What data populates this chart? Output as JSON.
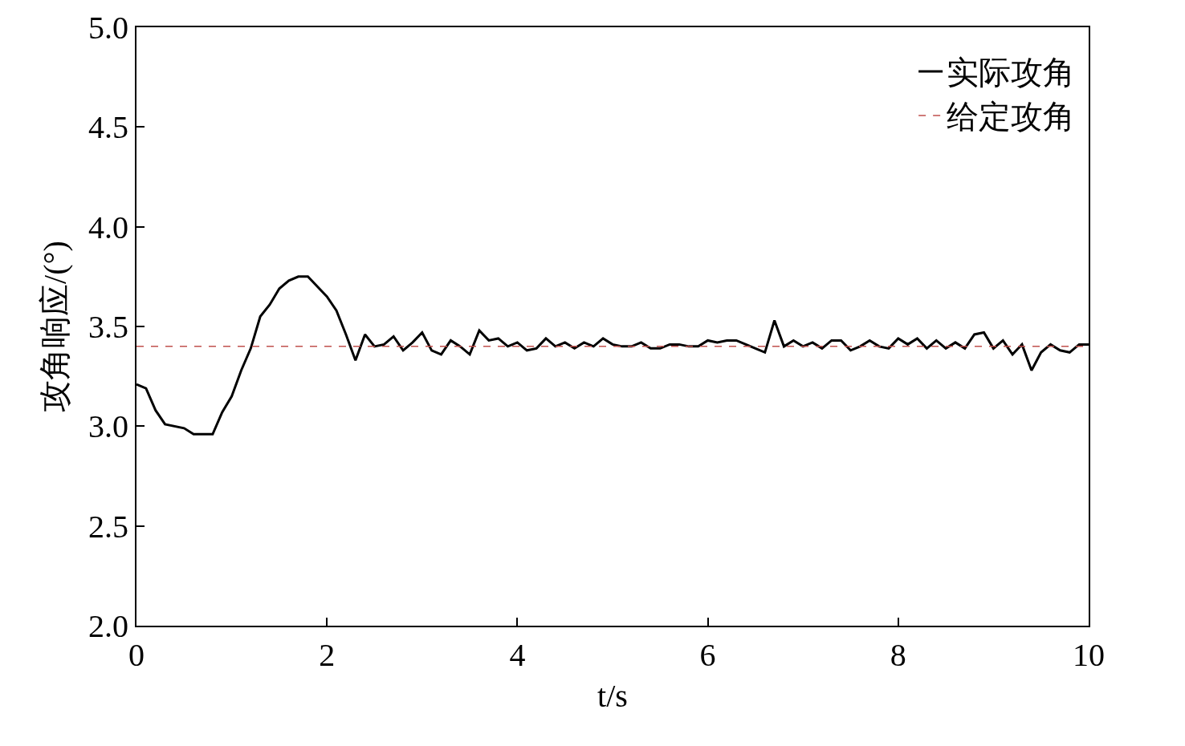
{
  "chart_data": {
    "type": "line",
    "xlabel": "t/s",
    "ylabel": "攻角响应/(°)",
    "xlim": [
      0,
      10
    ],
    "xticks": [
      0,
      2,
      4,
      6,
      8,
      10
    ],
    "ylim": [
      2.0,
      5.0
    ],
    "yticks": [
      {
        "value": 2.0,
        "label": "2.0"
      },
      {
        "value": 2.5,
        "label": "2.5"
      },
      {
        "value": 3.0,
        "label": "3.0"
      },
      {
        "value": 3.5,
        "label": "3.5"
      },
      {
        "value": 4.0,
        "label": "4.0"
      },
      {
        "value": 4.5,
        "label": "4.5"
      },
      {
        "value": 5.0,
        "label": "5.0"
      }
    ],
    "legend": "top right",
    "marker": "none",
    "x": [
      0,
      0.1,
      0.2,
      0.3,
      0.5,
      0.6,
      0.8,
      0.9,
      1.0,
      1.1,
      1.2,
      1.3,
      1.4,
      1.5,
      1.6,
      1.7,
      1.8,
      1.9,
      2.0,
      2.1,
      2.2,
      2.3,
      2.4,
      2.5,
      2.6,
      2.7,
      2.8,
      2.9,
      3.0,
      3.1,
      3.2,
      3.3,
      3.4,
      3.5,
      3.6,
      3.7,
      3.8,
      3.9,
      4.0,
      4.1,
      4.2,
      4.3,
      4.4,
      4.5,
      4.6,
      4.7,
      4.8,
      4.9,
      5.0,
      5.1,
      5.2,
      5.3,
      5.4,
      5.5,
      5.6,
      5.7,
      5.8,
      5.9,
      6.0,
      6.1,
      6.2,
      6.3,
      6.4,
      6.5,
      6.6,
      6.7,
      6.8,
      6.9,
      7.0,
      7.1,
      7.2,
      7.3,
      7.4,
      7.5,
      7.6,
      7.7,
      7.8,
      7.9,
      8.0,
      8.1,
      8.2,
      8.3,
      8.4,
      8.5,
      8.6,
      8.7,
      8.8,
      8.9,
      9.0,
      9.1,
      9.2,
      9.3,
      9.4,
      9.5,
      9.6,
      9.7,
      9.8,
      9.9,
      10.0
    ],
    "series": [
      {
        "name": "实际攻角",
        "color": "#000000",
        "line_style": "solid",
        "values": [
          3.21,
          3.19,
          3.08,
          3.01,
          2.99,
          2.96,
          2.96,
          3.07,
          3.15,
          3.28,
          3.39,
          3.55,
          3.61,
          3.69,
          3.73,
          3.75,
          3.75,
          3.7,
          3.65,
          3.58,
          3.46,
          3.33,
          3.46,
          3.4,
          3.41,
          3.45,
          3.38,
          3.42,
          3.47,
          3.38,
          3.36,
          3.43,
          3.4,
          3.36,
          3.48,
          3.43,
          3.44,
          3.4,
          3.42,
          3.38,
          3.39,
          3.44,
          3.4,
          3.42,
          3.39,
          3.42,
          3.4,
          3.44,
          3.41,
          3.4,
          3.4,
          3.42,
          3.39,
          3.39,
          3.41,
          3.41,
          3.4,
          3.4,
          3.43,
          3.42,
          3.43,
          3.43,
          3.41,
          3.39,
          3.37,
          3.53,
          3.4,
          3.43,
          3.4,
          3.42,
          3.39,
          3.43,
          3.43,
          3.38,
          3.4,
          3.43,
          3.4,
          3.39,
          3.44,
          3.41,
          3.44,
          3.39,
          3.43,
          3.39,
          3.42,
          3.39,
          3.46,
          3.47,
          3.39,
          3.43,
          3.36,
          3.41,
          3.28,
          3.37,
          3.41,
          3.38,
          3.37,
          3.41,
          3.41
        ]
      }
    ],
    "ref_lines": [
      {
        "axis": "y",
        "value": 3.4,
        "label": "给定攻角",
        "color": "#c0504d",
        "line_style": "dashed"
      }
    ]
  }
}
